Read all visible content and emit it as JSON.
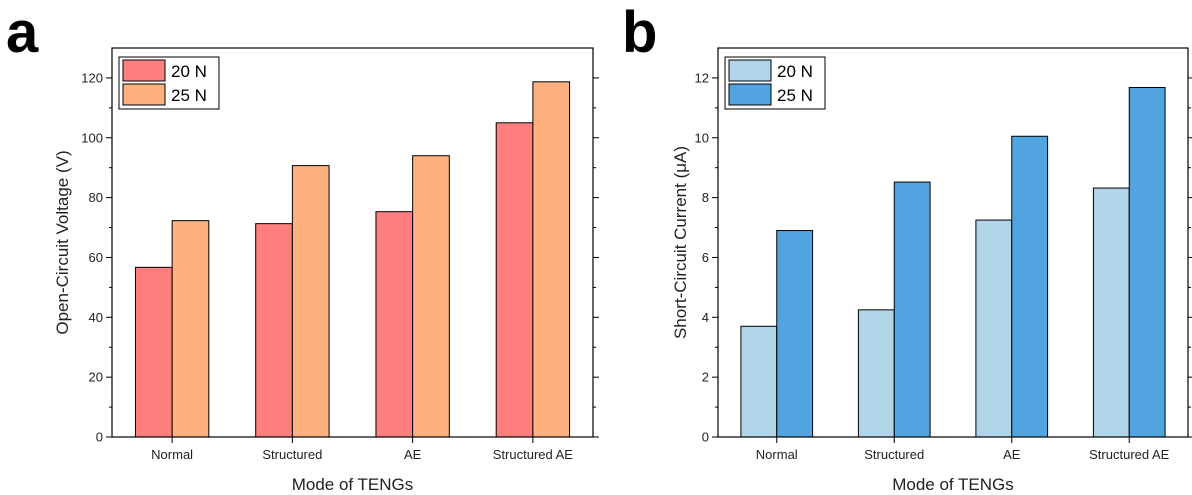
{
  "chart_data": [
    {
      "panel": "a",
      "type": "bar",
      "categories": [
        "Normal",
        "Structured",
        "AE",
        "Structured AE"
      ],
      "series": [
        {
          "name": "20 N",
          "values": [
            56.7,
            71.3,
            75.3,
            105.0
          ],
          "color": "#ff7f7f"
        },
        {
          "name": "25 N",
          "values": [
            72.3,
            90.7,
            94.0,
            118.7
          ],
          "color": "#ffb07f"
        }
      ],
      "xlabel": "Mode of TENGs",
      "ylabel": "Open-Circuit Voltage (V)",
      "ylim": [
        0,
        130
      ],
      "yticks": [
        0,
        20,
        40,
        60,
        80,
        100,
        120
      ],
      "legend_position": "top-left",
      "grid": false
    },
    {
      "panel": "b",
      "type": "bar",
      "categories": [
        "Normal",
        "Structured",
        "AE",
        "Structured AE"
      ],
      "series": [
        {
          "name": "20 N",
          "values": [
            3.7,
            4.25,
            7.25,
            8.32
          ],
          "color": "#b0d4e8"
        },
        {
          "name": "25 N",
          "values": [
            6.9,
            8.52,
            10.05,
            11.68
          ],
          "color": "#52a4e0"
        }
      ],
      "xlabel": "Mode of TENGs",
      "ylabel": "Short-Circuit Current (μA)",
      "ylim": [
        0,
        13
      ],
      "yticks": [
        0,
        2,
        4,
        6,
        8,
        10,
        12
      ],
      "legend_position": "top-left",
      "grid": false
    }
  ]
}
